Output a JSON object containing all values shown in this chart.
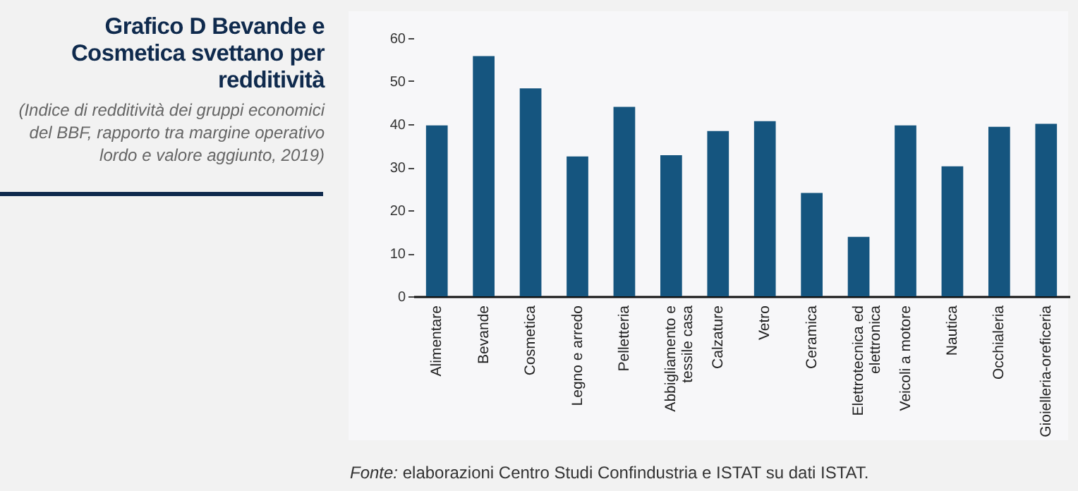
{
  "chart_data": {
    "type": "bar",
    "title": "Grafico D Bevande e Cosmetica svettano per redditività",
    "subtitle": "(Indice di redditività dei gruppi economici del BBF, rapporto tra margine operativo lordo e valore aggiunto, 2019)",
    "annotations": [
      "Fonte: elaborazioni Centro Studi Confindustria e ISTAT su dati ISTAT."
    ],
    "categories": [
      "Alimentare",
      "Bevande",
      "Cosmetica",
      "Legno e arredo",
      "Pelletteria",
      "Abbigliamento e tessile casa",
      "Calzature",
      "Vetro",
      "Ceramica",
      "Elettrotecnica ed elettronica",
      "Veicoli a motore",
      "Nautica",
      "Occhialeria",
      "Gioielleria-oreficeria"
    ],
    "values": [
      39.7,
      55.8,
      48.3,
      32.5,
      44.0,
      32.8,
      38.4,
      40.7,
      24.0,
      13.8,
      39.7,
      30.2,
      39.4,
      40.1
    ],
    "color": "#15557f",
    "ylim": [
      0,
      60
    ],
    "yticks": [
      0,
      10,
      20,
      30,
      40,
      50,
      60
    ],
    "grid": false
  }
}
